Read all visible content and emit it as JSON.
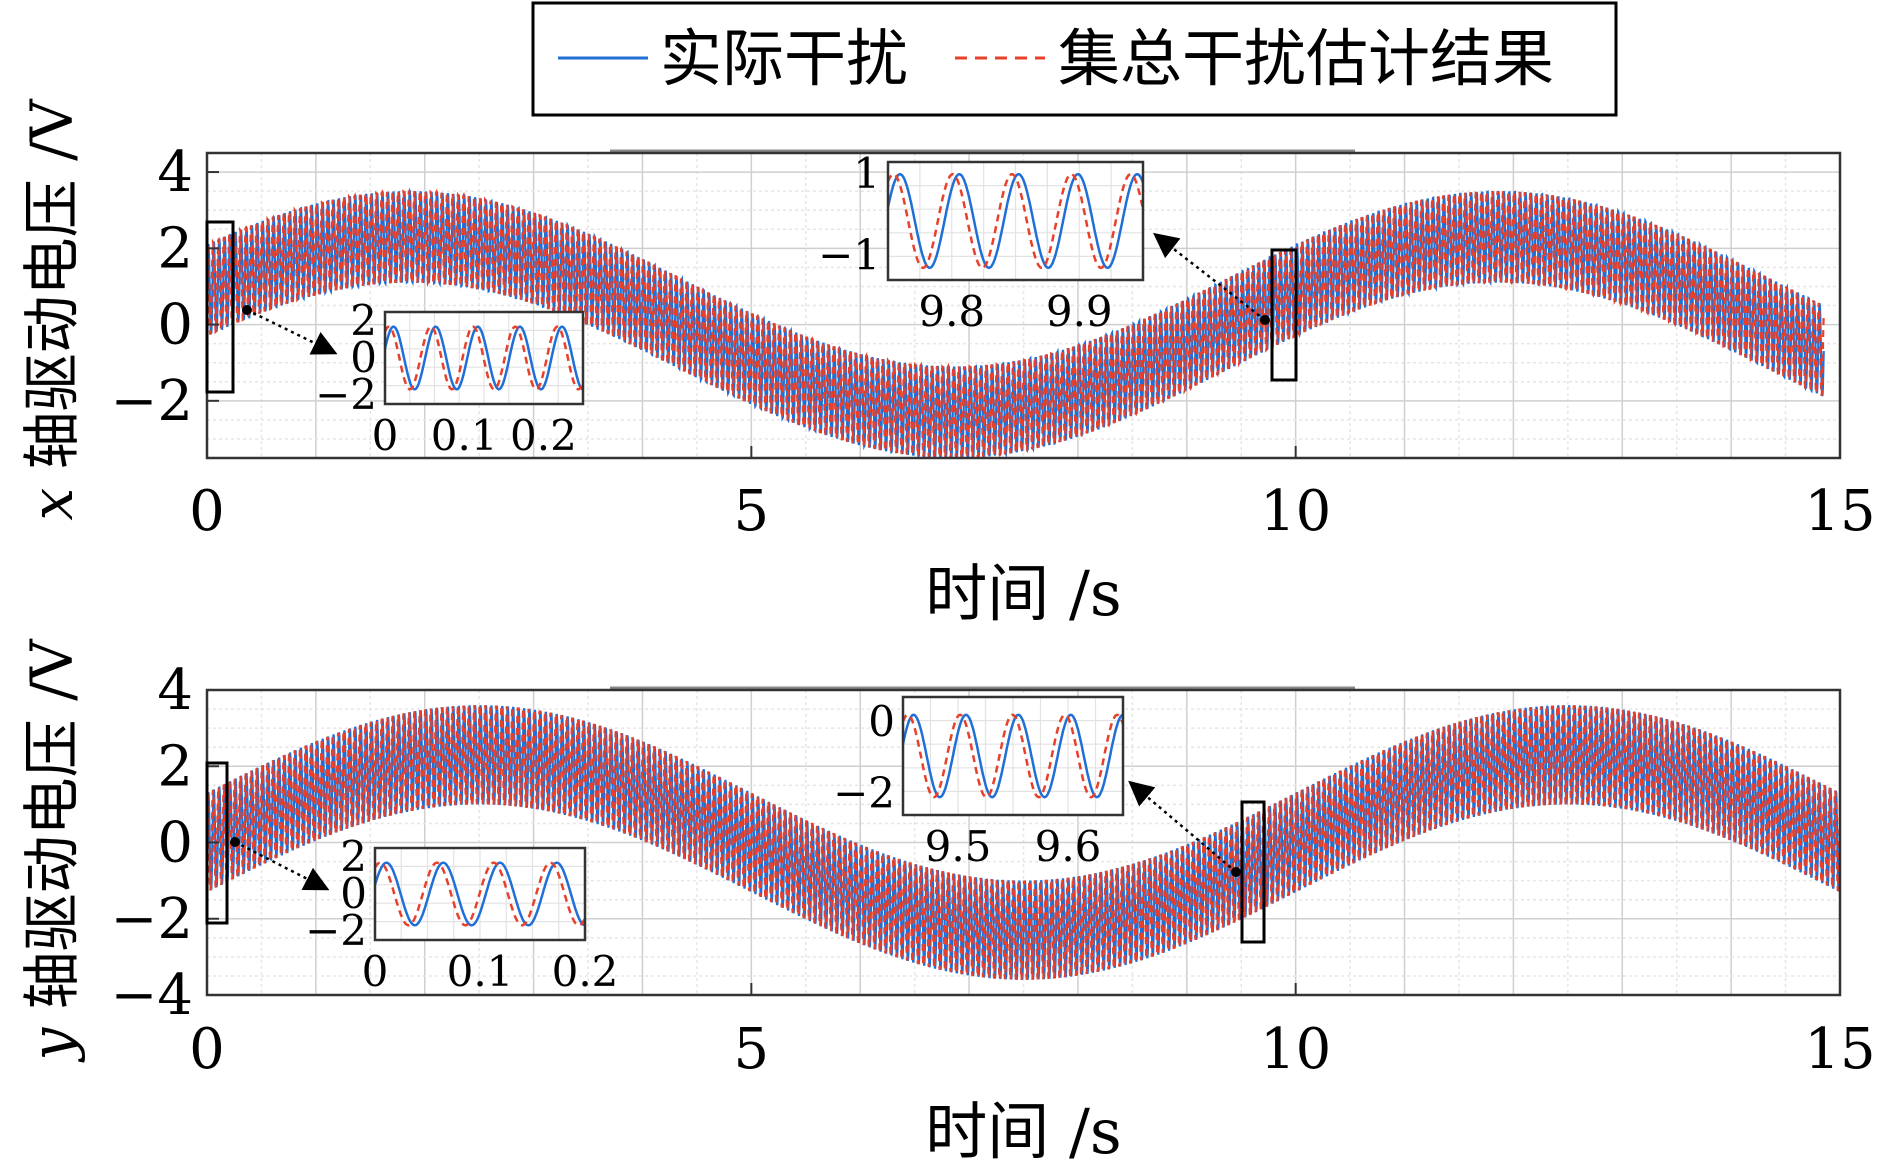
{
  "legend": {
    "items": [
      {
        "label": "实际干扰",
        "color": "#1f6fd6",
        "style": "solid"
      },
      {
        "label": "集总干扰估计结果",
        "color": "#e8402a",
        "style": "dashed"
      }
    ]
  },
  "chart_data": [
    {
      "type": "line",
      "panel": "top",
      "xlabel": "时间 /s",
      "ylabel_var": "x",
      "ylabel": "轴驱动电压 /V",
      "xlim": [
        0,
        15
      ],
      "ylim": [
        -3.5,
        4.5
      ],
      "xticks": [
        "0",
        "5",
        "10",
        "15"
      ],
      "yticks": [
        "−2",
        "0",
        "2",
        "4"
      ],
      "ytick_values": [
        -2,
        0,
        2,
        4
      ],
      "grid": true,
      "signal": {
        "duration": 14.85,
        "base_amplitude": 2.3,
        "base_period": 10,
        "base_phase": 0.4,
        "osc_amplitude": 1.2,
        "osc_frequency": 20
      },
      "series": [
        {
          "name": "实际干扰",
          "color": "#1f6fd6"
        },
        {
          "name": "集总干扰估计结果",
          "color": "#e8402a"
        }
      ],
      "insets": [
        {
          "xlim": [
            0,
            0.25
          ],
          "ylim": [
            -2.5,
            2.5
          ],
          "xticks": [
            "0",
            "0.1",
            "0.2"
          ],
          "xtick_values": [
            0,
            0.1,
            0.2
          ],
          "yticks": [
            "2",
            "0",
            "−2"
          ],
          "ytick_values": [
            2,
            0,
            -2
          ],
          "cycles": 4.7,
          "amp": 1.7
        },
        {
          "xlim": [
            9.75,
            9.95
          ],
          "ylim": [
            -1.6,
            1.3
          ],
          "xticks": [
            "9.8",
            "9.9"
          ],
          "xtick_values": [
            9.8,
            9.9
          ],
          "yticks": [
            "1",
            "−1"
          ],
          "ytick_values": [
            1,
            -1
          ],
          "cycles": 4.3,
          "amp": 1.15
        }
      ]
    },
    {
      "type": "line",
      "panel": "bottom",
      "xlabel": "时间 /s",
      "ylabel_var": "y",
      "ylabel": "轴驱动电压 /V",
      "xlim": [
        0,
        15
      ],
      "ylim": [
        -4,
        4
      ],
      "xticks": [
        "0",
        "5",
        "10",
        "15"
      ],
      "yticks": [
        "−4",
        "−2",
        "0",
        "2",
        "4"
      ],
      "ytick_values": [
        -4,
        -2,
        0,
        2,
        4
      ],
      "grid": true,
      "signal": {
        "duration": 15,
        "base_amplitude": 2.3,
        "base_period": 10,
        "base_phase": 0.0,
        "osc_amplitude": 1.3,
        "osc_frequency": 20
      },
      "series": [
        {
          "name": "实际干扰",
          "color": "#1f6fd6"
        },
        {
          "name": "集总干扰估计结果",
          "color": "#e8402a"
        }
      ],
      "insets": [
        {
          "xlim": [
            0,
            0.2
          ],
          "ylim": [
            -2.5,
            2.5
          ],
          "xticks": [
            "0",
            "0.1",
            "0.2"
          ],
          "xtick_values": [
            0,
            0.1,
            0.2
          ],
          "yticks": [
            "2",
            "0",
            "−2"
          ],
          "ytick_values": [
            2,
            0,
            -2
          ],
          "cycles": 3.7,
          "amp": 1.7
        },
        {
          "xlim": [
            9.45,
            9.65
          ],
          "ylim": [
            -2.6,
            0.7
          ],
          "xticks": [
            "9.5",
            "9.6"
          ],
          "xtick_values": [
            9.5,
            9.6
          ],
          "yticks": [
            "0",
            "−2"
          ],
          "ytick_values": [
            0,
            -2
          ],
          "cycles": 4.2,
          "amp": 1.15
        }
      ]
    }
  ]
}
